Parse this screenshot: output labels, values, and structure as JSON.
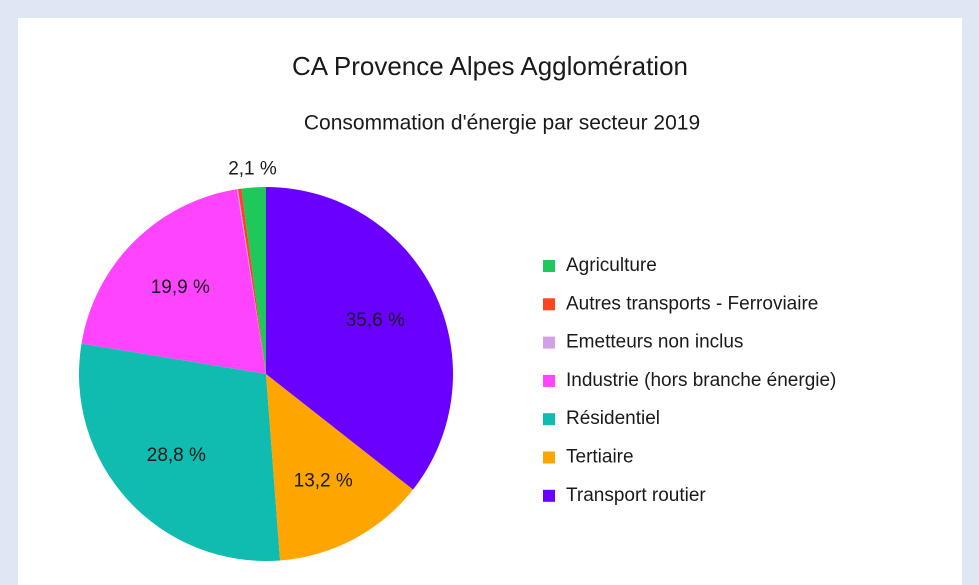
{
  "chart_data": {
    "type": "pie",
    "title": "CA Provence Alpes Agglomération",
    "subtitle": "Consommation d'énergie par secteur 2019",
    "categories": [
      "Agriculture",
      "Autres transports - Ferroviaire",
      "Emetteurs non inclus",
      "Industrie (hors branche énergie)",
      "Résidentiel",
      "Tertiaire",
      "Transport routier"
    ],
    "values": [
      2.1,
      0.3,
      0.1,
      19.9,
      28.8,
      13.2,
      35.6
    ],
    "value_labels": [
      "2,1 %",
      null,
      null,
      "19,9 %",
      "28,8 %",
      "13,2 %",
      "35,6 %"
    ],
    "colors": [
      "#1ec85a",
      "#ff4420",
      "#d4a0e8",
      "#ff44ff",
      "#10bbb0",
      "#ffa500",
      "#6a00ff"
    ],
    "legend": "right"
  }
}
